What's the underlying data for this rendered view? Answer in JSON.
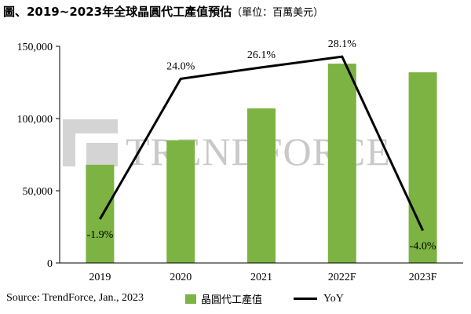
{
  "title": "圖、2019~2023年全球晶圓代工產值預估",
  "title_unit": "（單位：百萬美元）",
  "watermark": "TRENDFORCE",
  "source": "Source: TrendForce, Jan., 2023",
  "colors": {
    "bar": "#7cb342",
    "line": "#000000",
    "watermark": "#c9c9c9"
  },
  "chart_data": {
    "type": "bar",
    "categories": [
      "2019",
      "2020",
      "2021",
      "2022F",
      "2023F"
    ],
    "series": [
      {
        "name": "晶圓代工產值",
        "type": "bar",
        "values": [
          68000,
          85000,
          107000,
          138000,
          132000
        ]
      },
      {
        "name": "YoY",
        "type": "line",
        "values": [
          -1.9,
          24.0,
          26.1,
          28.1,
          -4.0
        ],
        "labels": [
          "-1.9%",
          "24.0%",
          "26.1%",
          "28.1%",
          "-4.0%"
        ]
      }
    ],
    "y_ticks": [
      "0",
      "50,000",
      "100,000",
      "150,000"
    ],
    "ylim": [
      0,
      150000
    ],
    "y2lim": [
      -10,
      30
    ],
    "grid": false,
    "legend": "bottom"
  }
}
